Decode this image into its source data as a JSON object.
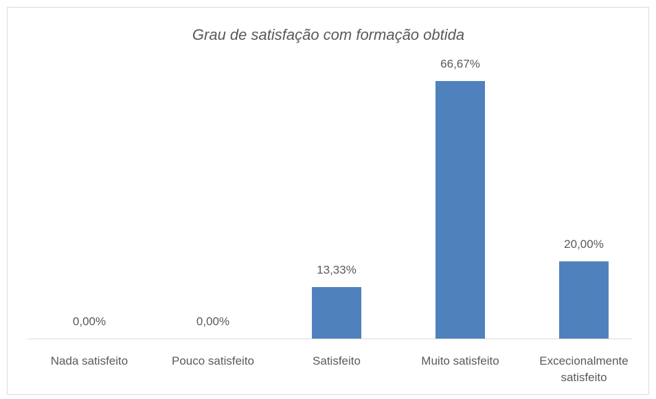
{
  "chart_data": {
    "type": "bar",
    "title": "Grau de satisfação com formação obtida",
    "categories": [
      "Nada satisfeito",
      "Pouco satisfeito",
      "Satisfeito",
      "Muito satisfeito",
      "Excecionalmente satisfeito"
    ],
    "values": [
      0,
      0,
      13.33,
      66.67,
      20
    ],
    "value_labels": [
      "0,00%",
      "0,00%",
      "13,33%",
      "66,67%",
      "20,00%"
    ],
    "color": "#4f81bd"
  }
}
